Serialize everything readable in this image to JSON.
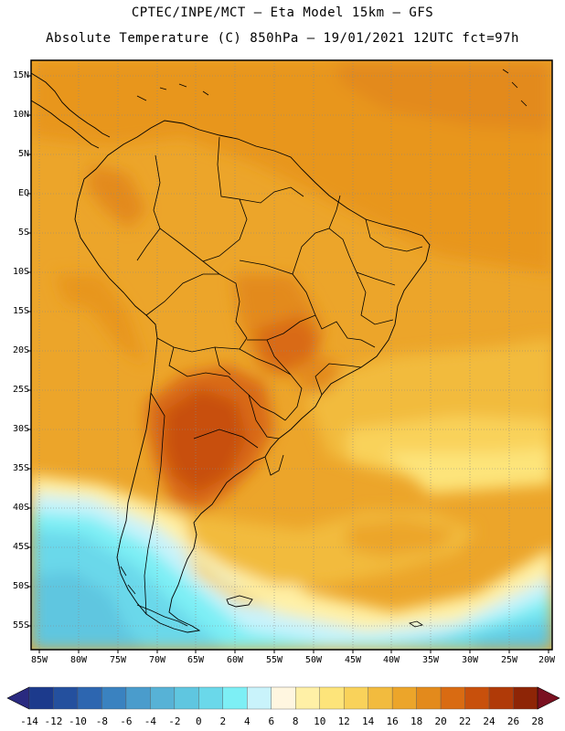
{
  "header": {
    "line1": "CPTEC/INPE/MCT –  Eta Model 15km – GFS",
    "line2": "Absolute Temperature (C) 850hPa – 19/01/2021 12UTC fct=97h"
  },
  "map": {
    "lat_labels": [
      "15N",
      "10N",
      "5N",
      "EQ",
      "5S",
      "10S",
      "15S",
      "20S",
      "25S",
      "30S",
      "35S",
      "40S",
      "45S",
      "50S",
      "55S"
    ],
    "lon_labels": [
      "85W",
      "80W",
      "75W",
      "70W",
      "65W",
      "60W",
      "55W",
      "50W",
      "45W",
      "40W",
      "35W",
      "30W",
      "25W",
      "20W"
    ]
  },
  "colorbar": {
    "labels": [
      "-14",
      "-12",
      "-10",
      "-8",
      "-6",
      "-4",
      "-2",
      "0",
      "2",
      "4",
      "6",
      "8",
      "10",
      "12",
      "14",
      "16",
      "18",
      "20",
      "22",
      "24",
      "26",
      "28"
    ],
    "colors": [
      "#1c3a8c",
      "#24509e",
      "#2d66b0",
      "#3a82c0",
      "#4a9ccc",
      "#57b2d6",
      "#5fc6e0",
      "#6ad8ea",
      "#7deff5",
      "#c9f3fb",
      "#fff6e0",
      "#fff0a6",
      "#fde47a",
      "#f9d25a",
      "#f2bb3e",
      "#eca52a",
      "#e38a1c",
      "#d96b12",
      "#c8500c",
      "#b03a08",
      "#8e2506"
    ],
    "under_color": "#2a2a80",
    "over_color": "#7a1020"
  }
}
